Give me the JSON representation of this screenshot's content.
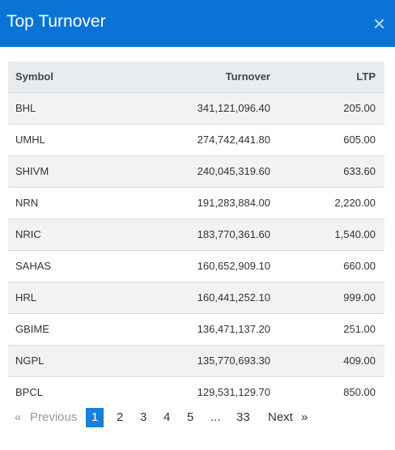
{
  "header": {
    "title": "Top Turnover",
    "close": "×"
  },
  "table": {
    "columns": [
      "Symbol",
      "Turnover",
      "LTP"
    ],
    "rows": [
      [
        "BHL",
        "341,121,096.40",
        "205.00"
      ],
      [
        "UMHL",
        "274,742,441.80",
        "605.00"
      ],
      [
        "SHIVM",
        "240,045,319.60",
        "633.60"
      ],
      [
        "NRN",
        "191,283,884.00",
        "2,220.00"
      ],
      [
        "NRIC",
        "183,770,361.60",
        "1,540.00"
      ],
      [
        "SAHAS",
        "160,652,909.10",
        "660.00"
      ],
      [
        "HRL",
        "160,441,252.10",
        "999.00"
      ],
      [
        "GBIME",
        "136,471,137.20",
        "251.00"
      ],
      [
        "NGPL",
        "135,770,693.30",
        "409.00"
      ],
      [
        "BPCL",
        "129,531,129.70",
        "850.00"
      ]
    ]
  },
  "pagination": {
    "first": "«",
    "previous": "Previous",
    "pages": [
      "1",
      "2",
      "3",
      "4",
      "5",
      "...",
      "33"
    ],
    "next": "Next",
    "last": "»"
  }
}
